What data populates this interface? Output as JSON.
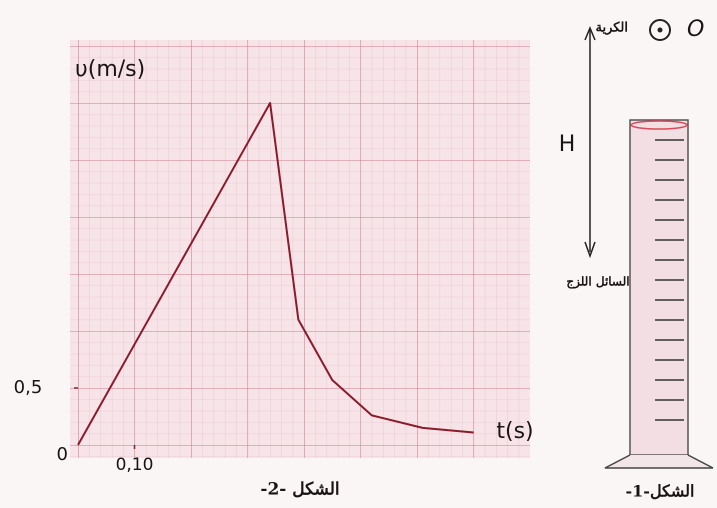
{
  "chart_data": {
    "type": "line",
    "title": "-الشكل -2",
    "x_label": "t(s)",
    "y_label": "υ(m/s)",
    "origin_label": "0",
    "x": [
      0,
      0.34,
      0.39,
      0.45,
      0.52,
      0.61,
      0.7
    ],
    "series": [
      {
        "name": "υ",
        "color": "#8b1a2a",
        "values": [
          0,
          3.0,
          1.1,
          0.57,
          0.26,
          0.15,
          0.11
        ]
      }
    ],
    "xlim": [
      0,
      0.8
    ],
    "ylim": [
      0,
      3.5
    ],
    "xticks": [
      {
        "value": 0.1,
        "label": "0,10"
      }
    ],
    "yticks": [
      {
        "value": 0.5,
        "label": "0,5"
      }
    ],
    "grid": true
  },
  "figure": {
    "point": "O",
    "ball": "الكرية",
    "height": "H",
    "liquid": "السائل اللزج",
    "caption": "-الشكل-1"
  }
}
